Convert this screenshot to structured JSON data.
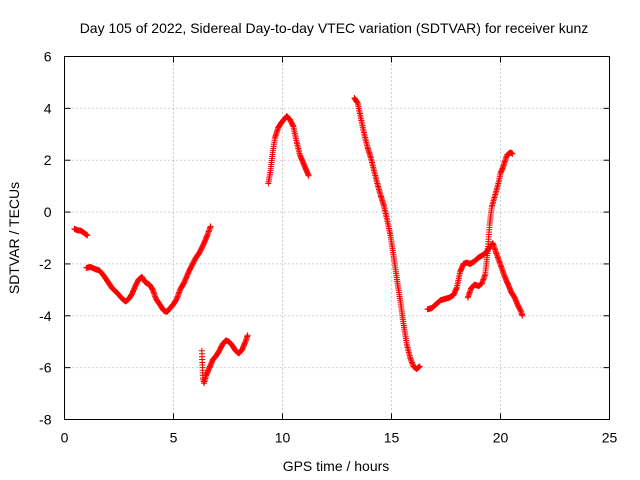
{
  "chart_data": {
    "type": "scatter",
    "title": "Day 105 of 2022, Sidereal Day-to-day VTEC variation (SDTVAR) for receiver kunz",
    "xlabel": "GPS time / hours",
    "ylabel": "SDTVAR / TECUs",
    "xlim": [
      0,
      25
    ],
    "ylim": [
      -8,
      6
    ],
    "xticks": [
      0,
      5,
      10,
      15,
      20,
      25
    ],
    "yticks": [
      -8,
      -6,
      -4,
      -2,
      0,
      2,
      4,
      6
    ],
    "xtick_labels": [
      "0",
      "5",
      "10",
      "15",
      "20",
      "25"
    ],
    "ytick_labels": [
      "-8",
      "-6",
      "-4",
      "-2",
      "0",
      "2",
      "4",
      "6"
    ],
    "grid": true,
    "marker": "+",
    "color": "#ff0000",
    "segments": [
      [
        [
          0.45,
          -0.65
        ],
        [
          0.6,
          -0.7
        ],
        [
          0.75,
          -0.72
        ],
        [
          0.9,
          -0.8
        ],
        [
          1.05,
          -0.9
        ]
      ],
      [
        [
          1.0,
          -2.15
        ],
        [
          1.2,
          -2.12
        ],
        [
          1.4,
          -2.2
        ],
        [
          1.6,
          -2.25
        ],
        [
          1.8,
          -2.45
        ],
        [
          2.0,
          -2.7
        ],
        [
          2.2,
          -2.95
        ],
        [
          2.4,
          -3.1
        ],
        [
          2.6,
          -3.3
        ],
        [
          2.8,
          -3.45
        ],
        [
          2.95,
          -3.35
        ],
        [
          3.1,
          -3.15
        ],
        [
          3.25,
          -2.85
        ],
        [
          3.4,
          -2.6
        ],
        [
          3.55,
          -2.5
        ],
        [
          3.7,
          -2.7
        ],
        [
          3.9,
          -2.8
        ],
        [
          4.05,
          -3.0
        ],
        [
          4.2,
          -3.35
        ],
        [
          4.4,
          -3.6
        ],
        [
          4.55,
          -3.8
        ],
        [
          4.7,
          -3.85
        ],
        [
          4.85,
          -3.7
        ],
        [
          5.0,
          -3.55
        ],
        [
          5.15,
          -3.35
        ],
        [
          5.3,
          -3.0
        ],
        [
          5.5,
          -2.7
        ],
        [
          5.7,
          -2.3
        ],
        [
          5.85,
          -2.05
        ],
        [
          6.0,
          -1.8
        ],
        [
          6.2,
          -1.55
        ],
        [
          6.4,
          -1.2
        ],
        [
          6.55,
          -0.9
        ],
        [
          6.7,
          -0.55
        ]
      ],
      [
        [
          6.3,
          -5.35
        ],
        [
          6.32,
          -5.8
        ],
        [
          6.35,
          -6.4
        ],
        [
          6.4,
          -6.6
        ],
        [
          6.5,
          -6.3
        ],
        [
          6.65,
          -6.0
        ],
        [
          6.8,
          -5.7
        ],
        [
          6.95,
          -5.55
        ],
        [
          7.1,
          -5.35
        ],
        [
          7.25,
          -5.1
        ],
        [
          7.4,
          -4.95
        ],
        [
          7.55,
          -5.0
        ],
        [
          7.7,
          -5.15
        ],
        [
          7.85,
          -5.35
        ],
        [
          8.0,
          -5.45
        ],
        [
          8.15,
          -5.3
        ],
        [
          8.3,
          -5.0
        ],
        [
          8.4,
          -4.75
        ]
      ],
      [
        [
          9.35,
          1.1
        ],
        [
          9.45,
          1.6
        ],
        [
          9.55,
          2.3
        ],
        [
          9.65,
          2.85
        ],
        [
          9.8,
          3.25
        ],
        [
          9.95,
          3.45
        ],
        [
          10.1,
          3.6
        ],
        [
          10.2,
          3.7
        ],
        [
          10.35,
          3.55
        ],
        [
          10.5,
          3.3
        ],
        [
          10.65,
          2.7
        ],
        [
          10.8,
          2.2
        ],
        [
          10.95,
          1.9
        ],
        [
          11.1,
          1.6
        ],
        [
          11.2,
          1.4
        ]
      ],
      [
        [
          13.3,
          4.4
        ],
        [
          13.45,
          4.2
        ],
        [
          13.6,
          3.6
        ],
        [
          13.75,
          3.0
        ],
        [
          13.9,
          2.5
        ],
        [
          14.05,
          2.1
        ],
        [
          14.2,
          1.6
        ],
        [
          14.35,
          1.1
        ],
        [
          14.5,
          0.65
        ],
        [
          14.65,
          0.25
        ],
        [
          14.8,
          -0.3
        ],
        [
          14.95,
          -0.9
        ],
        [
          15.1,
          -1.7
        ],
        [
          15.25,
          -2.6
        ],
        [
          15.4,
          -3.4
        ],
        [
          15.55,
          -4.3
        ],
        [
          15.7,
          -5.1
        ],
        [
          15.85,
          -5.6
        ],
        [
          16.0,
          -5.95
        ],
        [
          16.15,
          -6.05
        ],
        [
          16.3,
          -5.95
        ]
      ],
      [
        [
          16.65,
          -3.75
        ],
        [
          16.85,
          -3.7
        ],
        [
          17.05,
          -3.55
        ],
        [
          17.25,
          -3.4
        ],
        [
          17.45,
          -3.35
        ],
        [
          17.65,
          -3.3
        ],
        [
          17.85,
          -3.2
        ],
        [
          18.0,
          -2.9
        ],
        [
          18.15,
          -2.3
        ],
        [
          18.3,
          -2.0
        ],
        [
          18.45,
          -1.95
        ],
        [
          18.6,
          -2.0
        ],
        [
          18.8,
          -1.9
        ],
        [
          19.0,
          -1.75
        ],
        [
          19.2,
          -1.65
        ],
        [
          19.35,
          -1.55
        ],
        [
          19.5,
          -1.35
        ],
        [
          19.65,
          -1.2
        ],
        [
          19.75,
          -1.45
        ],
        [
          19.9,
          -1.8
        ],
        [
          20.05,
          -2.15
        ],
        [
          20.2,
          -2.5
        ],
        [
          20.35,
          -2.8
        ],
        [
          20.5,
          -3.1
        ],
        [
          20.65,
          -3.3
        ],
        [
          20.8,
          -3.6
        ],
        [
          20.95,
          -3.85
        ],
        [
          21.0,
          -4.0
        ]
      ],
      [
        [
          18.5,
          -3.3
        ],
        [
          18.65,
          -2.95
        ],
        [
          18.8,
          -2.8
        ],
        [
          19.0,
          -2.85
        ],
        [
          19.15,
          -2.75
        ],
        [
          19.3,
          -2.4
        ],
        [
          19.4,
          -1.6
        ],
        [
          19.5,
          -0.5
        ],
        [
          19.6,
          0.2
        ],
        [
          19.7,
          0.5
        ],
        [
          19.8,
          0.8
        ],
        [
          19.9,
          1.1
        ],
        [
          20.0,
          1.5
        ],
        [
          20.1,
          1.7
        ],
        [
          20.2,
          1.95
        ],
        [
          20.3,
          2.2
        ],
        [
          20.45,
          2.3
        ],
        [
          20.55,
          2.25
        ]
      ]
    ]
  }
}
